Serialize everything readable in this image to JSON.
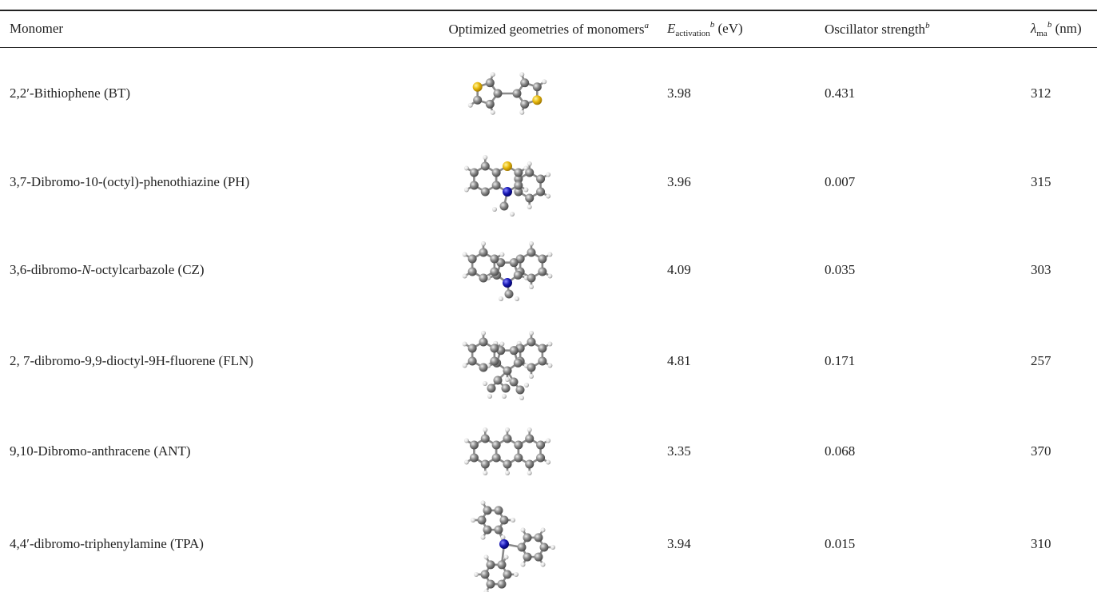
{
  "table": {
    "header": {
      "monomer": "Monomer",
      "geometry": {
        "text": "Optimized geometries of monomers",
        "sup": "a"
      },
      "energy": {
        "symbol": "E",
        "sub": "activation",
        "sup": "b",
        "unit": "(eV)"
      },
      "oscillator": {
        "text": "Oscillator strength",
        "sup": "b"
      },
      "lambda": {
        "symbol": "λ",
        "sub": "ma",
        "sup": "b",
        "unit": "(nm)"
      }
    },
    "rows": [
      {
        "monomer": "2,2′-Bithiophene (BT)",
        "energy": 3.98,
        "oscillator": 0.431,
        "lambda": 312
      },
      {
        "monomer": "3,7-Dibromo-10-(octyl)-phenothiazine (PH)",
        "energy": 3.96,
        "oscillator": 0.007,
        "lambda": 315
      },
      {
        "monomer": {
          "before": "3,6-dibromo-",
          "italic": "N",
          "after": "-octylcarbazole (CZ)"
        },
        "energy": 4.09,
        "oscillator": 0.035,
        "lambda": 303
      },
      {
        "monomer": "2, 7-dibromo-9,9-dioctyl-9H-fluorene (FLN)",
        "energy": 4.81,
        "oscillator": 0.171,
        "lambda": 257
      },
      {
        "monomer": "9,10-Dibromo-anthracene (ANT)",
        "energy": 3.35,
        "oscillator": 0.068,
        "lambda": 370
      },
      {
        "monomer": "4,4′-dibromo-triphenylamine (TPA)",
        "energy": 3.94,
        "oscillator": 0.015,
        "lambda": 310
      }
    ]
  }
}
